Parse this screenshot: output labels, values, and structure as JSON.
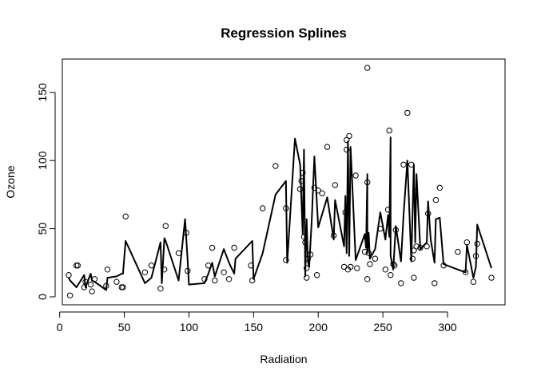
{
  "chart_data": {
    "type": "scatter",
    "title": "Regression Splines",
    "xlabel": "Radiation",
    "ylabel": "Ozone",
    "xlim": [
      0,
      340
    ],
    "ylim": [
      0,
      172
    ],
    "xticks": [
      0,
      50,
      100,
      150,
      200,
      250,
      300
    ],
    "yticks": [
      0,
      50,
      100,
      150
    ],
    "grid": false,
    "points": [
      [
        7,
        16
      ],
      [
        8,
        1
      ],
      [
        13,
        23
      ],
      [
        14,
        23
      ],
      [
        19,
        7
      ],
      [
        20,
        11
      ],
      [
        24,
        9
      ],
      [
        25,
        4
      ],
      [
        27,
        13
      ],
      [
        36,
        8
      ],
      [
        37,
        20
      ],
      [
        44,
        11
      ],
      [
        48,
        7
      ],
      [
        49,
        7
      ],
      [
        51,
        59
      ],
      [
        66,
        18
      ],
      [
        71,
        23
      ],
      [
        78,
        6
      ],
      [
        81,
        20
      ],
      [
        82,
        52
      ],
      [
        92,
        32
      ],
      [
        98,
        47
      ],
      [
        99,
        19
      ],
      [
        112,
        13
      ],
      [
        115,
        23
      ],
      [
        118,
        36
      ],
      [
        120,
        12
      ],
      [
        127,
        18
      ],
      [
        131,
        13
      ],
      [
        135,
        36
      ],
      [
        148,
        23
      ],
      [
        149,
        12
      ],
      [
        157,
        65
      ],
      [
        167,
        96
      ],
      [
        175,
        65
      ],
      [
        175,
        27
      ],
      [
        186,
        79
      ],
      [
        187,
        85
      ],
      [
        188,
        91
      ],
      [
        189,
        44
      ],
      [
        190,
        40
      ],
      [
        191,
        14
      ],
      [
        191,
        21
      ],
      [
        192,
        28
      ],
      [
        194,
        31
      ],
      [
        197,
        80
      ],
      [
        199,
        16
      ],
      [
        200,
        78
      ],
      [
        203,
        76
      ],
      [
        207,
        110
      ],
      [
        212,
        45
      ],
      [
        213,
        82
      ],
      [
        220,
        22
      ],
      [
        221,
        62
      ],
      [
        222,
        115
      ],
      [
        222,
        108
      ],
      [
        223,
        20
      ],
      [
        224,
        118
      ],
      [
        225,
        22
      ],
      [
        229,
        89
      ],
      [
        230,
        21
      ],
      [
        236,
        33
      ],
      [
        237,
        44
      ],
      [
        238,
        84
      ],
      [
        238,
        168
      ],
      [
        238,
        13
      ],
      [
        239,
        32
      ],
      [
        240,
        24
      ],
      [
        244,
        28
      ],
      [
        248,
        50
      ],
      [
        252,
        20
      ],
      [
        254,
        64
      ],
      [
        255,
        122
      ],
      [
        256,
        16
      ],
      [
        258,
        24
      ],
      [
        259,
        23
      ],
      [
        260,
        49
      ],
      [
        264,
        10
      ],
      [
        266,
        97
      ],
      [
        269,
        135
      ],
      [
        272,
        97
      ],
      [
        273,
        28
      ],
      [
        274,
        14
      ],
      [
        274,
        34
      ],
      [
        275,
        77
      ],
      [
        276,
        37
      ],
      [
        279,
        36
      ],
      [
        284,
        37
      ],
      [
        285,
        61
      ],
      [
        290,
        10
      ],
      [
        291,
        71
      ],
      [
        294,
        80
      ],
      [
        297,
        23
      ],
      [
        308,
        33
      ],
      [
        314,
        18
      ],
      [
        315,
        40
      ],
      [
        320,
        11
      ],
      [
        322,
        30
      ],
      [
        323,
        39
      ],
      [
        334,
        14
      ]
    ],
    "series": [
      {
        "values": [
          [
            7,
            14
          ],
          [
            8,
            12
          ],
          [
            13,
            7
          ],
          [
            19,
            16
          ],
          [
            20,
            7
          ],
          [
            24,
            17
          ],
          [
            25,
            12
          ],
          [
            27,
            11
          ],
          [
            36,
            5
          ],
          [
            37,
            14
          ],
          [
            44,
            15
          ],
          [
            48,
            17
          ],
          [
            49,
            17
          ],
          [
            51,
            41
          ],
          [
            66,
            10
          ],
          [
            71,
            14
          ],
          [
            78,
            40
          ],
          [
            79,
            10
          ],
          [
            81,
            43
          ],
          [
            82,
            41
          ],
          [
            92,
            12
          ],
          [
            97,
            57
          ],
          [
            99,
            27
          ],
          [
            100,
            9
          ],
          [
            112,
            10
          ],
          [
            115,
            17
          ],
          [
            118,
            25
          ],
          [
            120,
            15
          ],
          [
            127,
            35
          ],
          [
            131,
            25
          ],
          [
            135,
            17
          ],
          [
            136,
            28
          ],
          [
            149,
            41
          ],
          [
            150,
            13
          ],
          [
            157,
            32
          ],
          [
            167,
            75
          ],
          [
            175,
            85
          ],
          [
            176,
            25
          ],
          [
            182,
            116
          ],
          [
            186,
            97
          ],
          [
            188,
            46
          ],
          [
            189,
            108
          ],
          [
            190,
            15
          ],
          [
            191,
            57
          ],
          [
            192,
            26
          ],
          [
            193,
            22
          ],
          [
            195,
            56
          ],
          [
            197,
            103
          ],
          [
            200,
            51
          ],
          [
            207,
            73
          ],
          [
            212,
            42
          ],
          [
            213,
            71
          ],
          [
            220,
            37
          ],
          [
            221,
            74
          ],
          [
            222,
            32
          ],
          [
            223,
            114
          ],
          [
            224,
            30
          ],
          [
            225,
            110
          ],
          [
            229,
            27
          ],
          [
            236,
            46
          ],
          [
            237,
            36
          ],
          [
            238,
            90
          ],
          [
            238,
            32
          ],
          [
            239,
            47
          ],
          [
            240,
            28
          ],
          [
            244,
            35
          ],
          [
            248,
            62
          ],
          [
            252,
            42
          ],
          [
            254,
            60
          ],
          [
            255,
            44
          ],
          [
            256,
            117
          ],
          [
            256,
            30
          ],
          [
            258,
            20
          ],
          [
            260,
            52
          ],
          [
            264,
            26
          ],
          [
            266,
            60
          ],
          [
            269,
            100
          ],
          [
            272,
            26
          ],
          [
            274,
            97
          ],
          [
            275,
            40
          ],
          [
            276,
            90
          ],
          [
            279,
            35
          ],
          [
            284,
            40
          ],
          [
            285,
            70
          ],
          [
            287,
            42
          ],
          [
            290,
            25
          ],
          [
            291,
            57
          ],
          [
            294,
            58
          ],
          [
            297,
            24
          ],
          [
            308,
            20
          ],
          [
            314,
            18
          ],
          [
            315,
            38
          ],
          [
            320,
            14
          ],
          [
            322,
            22
          ],
          [
            323,
            53
          ],
          [
            334,
            21
          ]
        ]
      }
    ]
  }
}
